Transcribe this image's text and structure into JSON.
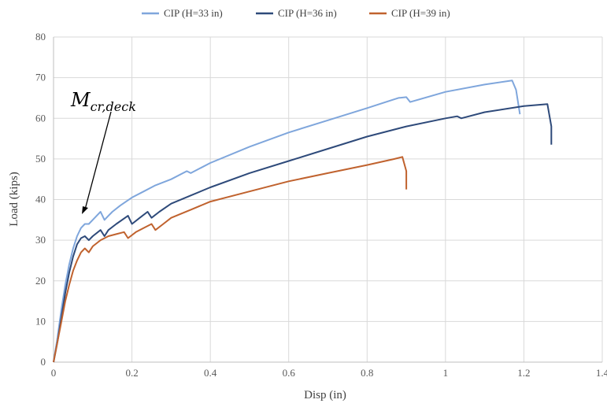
{
  "chart_data": {
    "type": "line",
    "title": "",
    "xlabel": "Disp (in)",
    "ylabel": "Load (kips)",
    "xlim": [
      0,
      1.4
    ],
    "ylim": [
      0,
      80
    ],
    "xticks": [
      0,
      0.2,
      0.4,
      0.6,
      0.8,
      1,
      1.2,
      1.4
    ],
    "xtick_labels": [
      "0",
      "0.2",
      "0.4",
      "0.6",
      "0.8",
      "1",
      "1.2",
      "1.4"
    ],
    "yticks": [
      0,
      10,
      20,
      30,
      40,
      50,
      60,
      70,
      80
    ],
    "ytick_labels": [
      "0",
      "10",
      "20",
      "30",
      "40",
      "50",
      "60",
      "70",
      "80"
    ],
    "grid": true,
    "legend_position": "top",
    "series": [
      {
        "name": "CIP (H=33 in)",
        "color": "#7fa6dc",
        "points": [
          [
            0,
            0
          ],
          [
            0.01,
            6
          ],
          [
            0.02,
            13
          ],
          [
            0.03,
            19
          ],
          [
            0.04,
            24
          ],
          [
            0.05,
            28
          ],
          [
            0.06,
            31
          ],
          [
            0.07,
            33
          ],
          [
            0.08,
            34
          ],
          [
            0.09,
            34
          ],
          [
            0.1,
            35
          ],
          [
            0.11,
            36
          ],
          [
            0.12,
            37
          ],
          [
            0.13,
            35
          ],
          [
            0.14,
            36
          ],
          [
            0.15,
            37
          ],
          [
            0.17,
            38.5
          ],
          [
            0.2,
            40.5
          ],
          [
            0.23,
            42
          ],
          [
            0.26,
            43.5
          ],
          [
            0.3,
            45
          ],
          [
            0.34,
            47
          ],
          [
            0.35,
            46.5
          ],
          [
            0.4,
            49
          ],
          [
            0.5,
            53
          ],
          [
            0.6,
            56.5
          ],
          [
            0.7,
            59.5
          ],
          [
            0.8,
            62.5
          ],
          [
            0.88,
            65
          ],
          [
            0.9,
            65.2
          ],
          [
            0.91,
            64
          ],
          [
            1.0,
            66.5
          ],
          [
            1.1,
            68.3
          ],
          [
            1.17,
            69.3
          ],
          [
            1.18,
            67
          ],
          [
            1.19,
            61
          ]
        ]
      },
      {
        "name": "CIP (H=36 in)",
        "color": "#2e4a7a",
        "points": [
          [
            0,
            0
          ],
          [
            0.01,
            5
          ],
          [
            0.02,
            11
          ],
          [
            0.03,
            17
          ],
          [
            0.04,
            22
          ],
          [
            0.05,
            26
          ],
          [
            0.06,
            29
          ],
          [
            0.07,
            30.5
          ],
          [
            0.08,
            31
          ],
          [
            0.09,
            30
          ],
          [
            0.1,
            31
          ],
          [
            0.12,
            32.5
          ],
          [
            0.13,
            31
          ],
          [
            0.14,
            32.5
          ],
          [
            0.16,
            34
          ],
          [
            0.19,
            36
          ],
          [
            0.2,
            34
          ],
          [
            0.22,
            35.5
          ],
          [
            0.24,
            37
          ],
          [
            0.25,
            35.5
          ],
          [
            0.27,
            37
          ],
          [
            0.3,
            39
          ],
          [
            0.35,
            41
          ],
          [
            0.4,
            43
          ],
          [
            0.5,
            46.5
          ],
          [
            0.6,
            49.5
          ],
          [
            0.7,
            52.5
          ],
          [
            0.8,
            55.5
          ],
          [
            0.9,
            58
          ],
          [
            1.0,
            60
          ],
          [
            1.03,
            60.5
          ],
          [
            1.04,
            60
          ],
          [
            1.1,
            61.5
          ],
          [
            1.2,
            63
          ],
          [
            1.26,
            63.5
          ],
          [
            1.27,
            58
          ],
          [
            1.27,
            53.5
          ]
        ]
      },
      {
        "name": "CIP (H=39 in)",
        "color": "#c0622e",
        "points": [
          [
            0,
            0
          ],
          [
            0.01,
            5
          ],
          [
            0.02,
            10
          ],
          [
            0.03,
            15
          ],
          [
            0.04,
            19
          ],
          [
            0.05,
            22.5
          ],
          [
            0.06,
            25
          ],
          [
            0.07,
            27
          ],
          [
            0.08,
            28
          ],
          [
            0.09,
            27
          ],
          [
            0.1,
            28.5
          ],
          [
            0.12,
            30
          ],
          [
            0.14,
            31
          ],
          [
            0.16,
            31.5
          ],
          [
            0.18,
            32
          ],
          [
            0.19,
            30.5
          ],
          [
            0.21,
            32
          ],
          [
            0.23,
            33
          ],
          [
            0.25,
            34
          ],
          [
            0.26,
            32.5
          ],
          [
            0.28,
            34
          ],
          [
            0.3,
            35.5
          ],
          [
            0.35,
            37.5
          ],
          [
            0.4,
            39.5
          ],
          [
            0.5,
            42
          ],
          [
            0.6,
            44.5
          ],
          [
            0.7,
            46.5
          ],
          [
            0.8,
            48.5
          ],
          [
            0.87,
            50
          ],
          [
            0.89,
            50.5
          ],
          [
            0.9,
            47
          ],
          [
            0.9,
            42.5
          ]
        ]
      }
    ],
    "annotation": {
      "text_main": "M",
      "text_sub": "cr,deck"
    }
  }
}
